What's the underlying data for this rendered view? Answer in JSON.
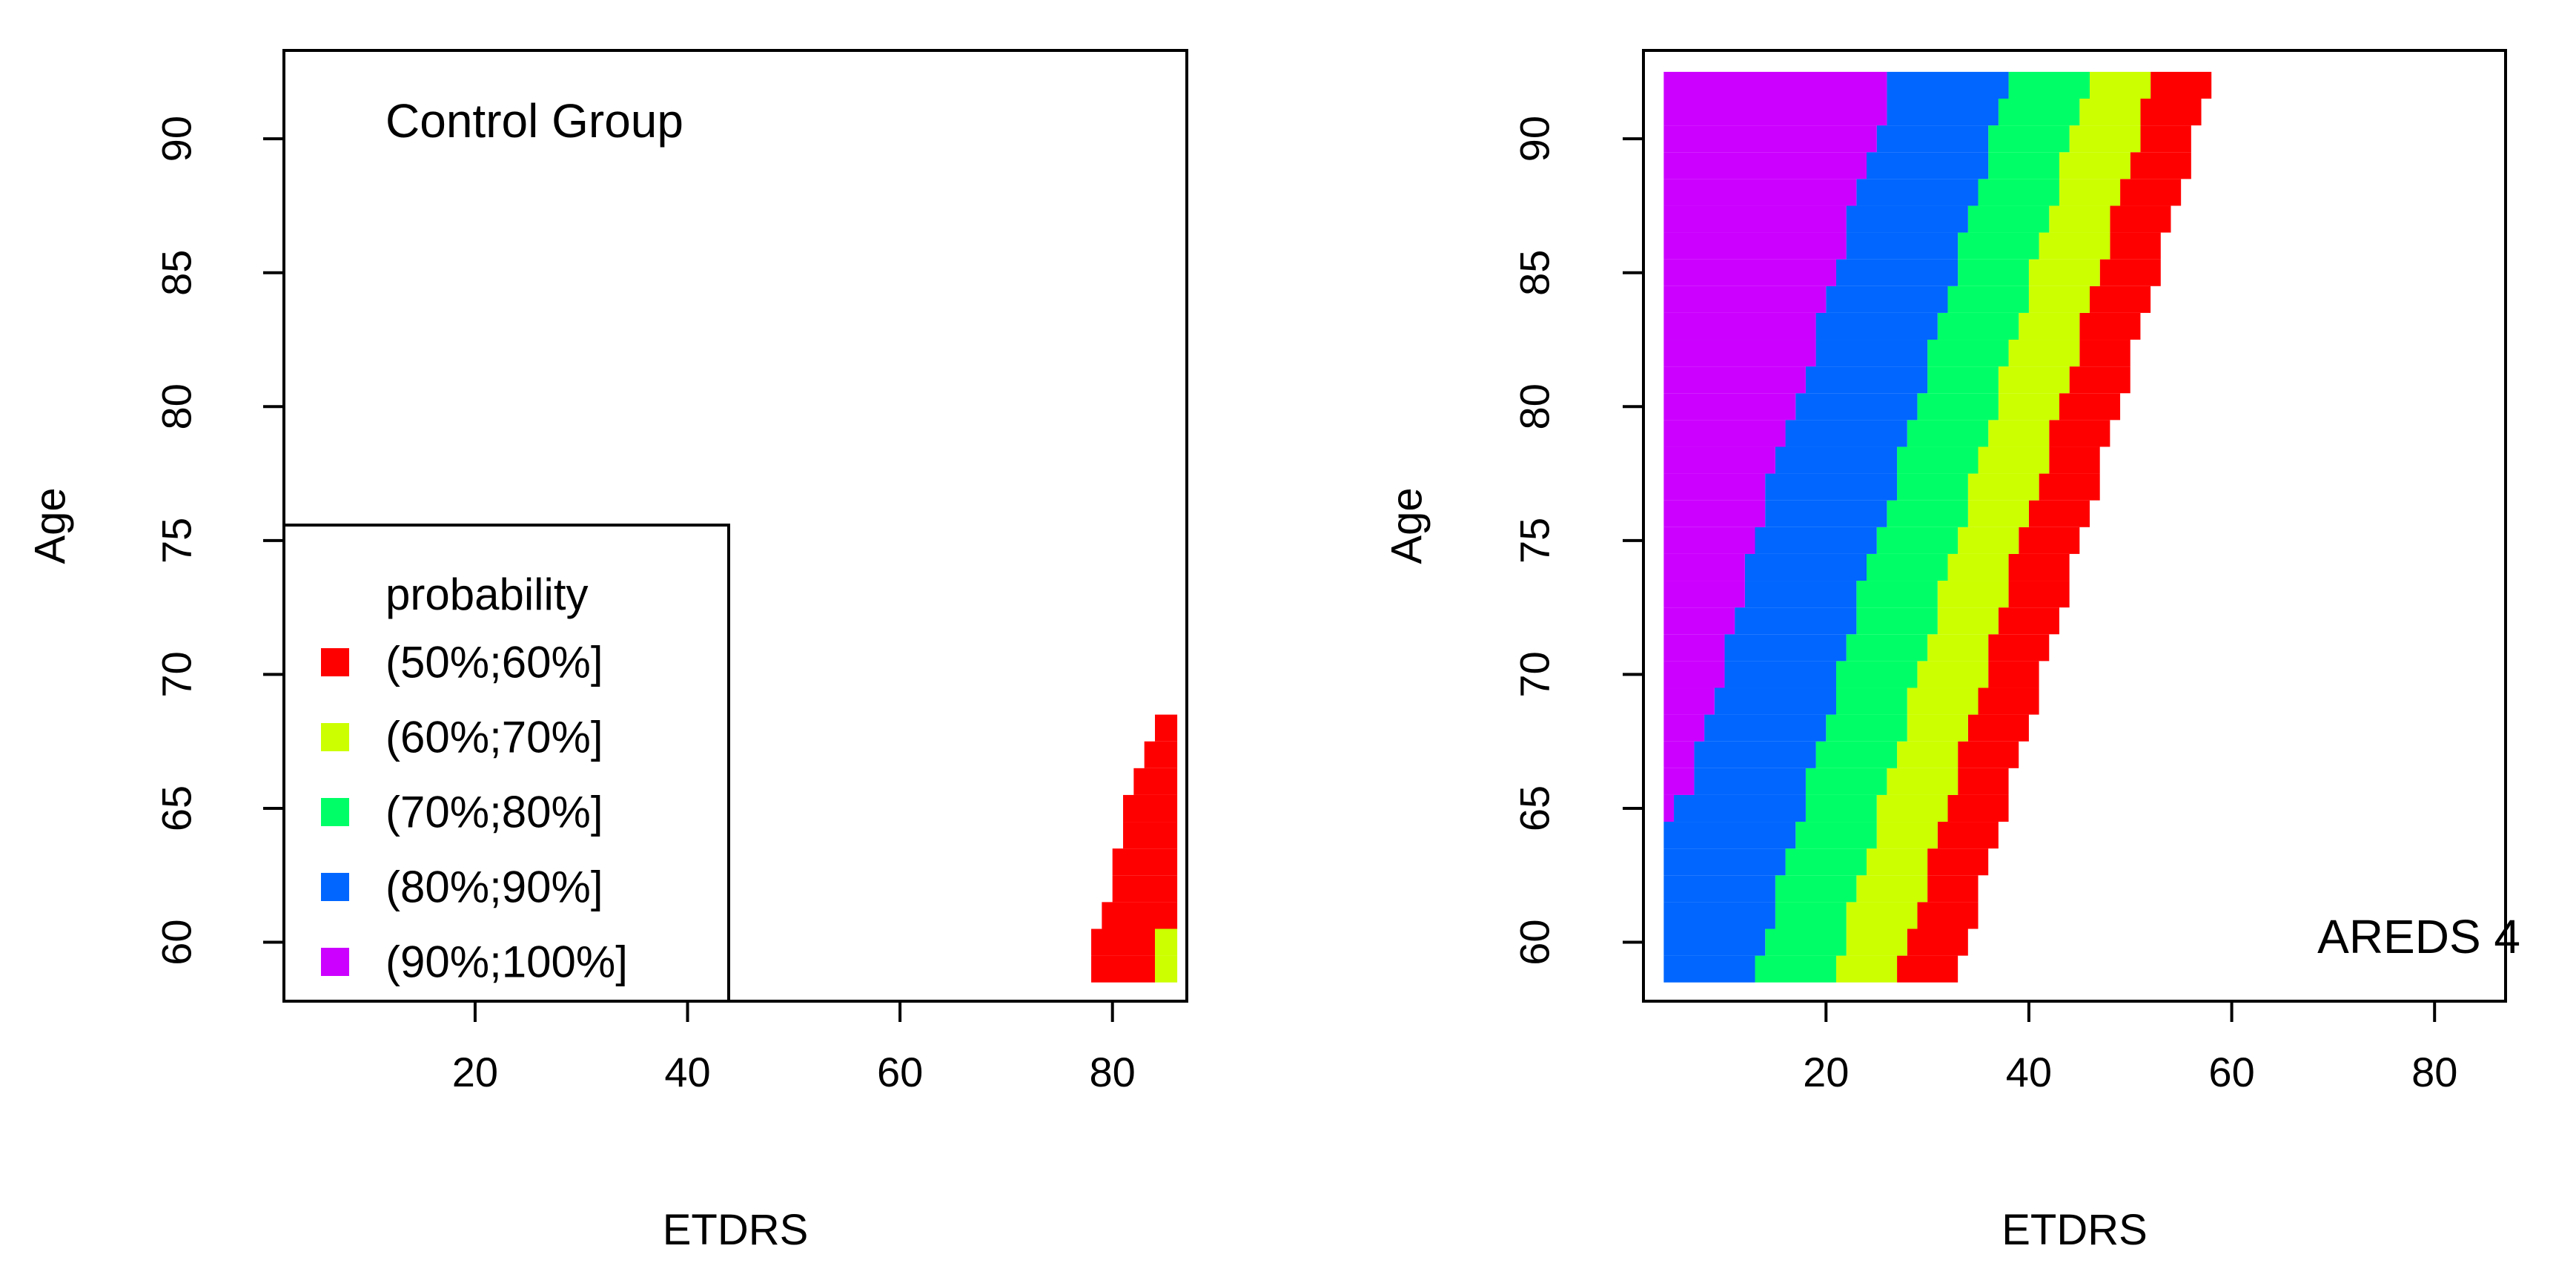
{
  "chart_data": [
    {
      "type": "heatmap",
      "panel_label": "Control Group",
      "xlabel": "ETDRS",
      "ylabel": "Age",
      "xlim": [
        2,
        87
      ],
      "ylim": [
        57.8,
        93.3
      ],
      "xticks": [
        20,
        40,
        60,
        80
      ],
      "yticks": [
        60,
        65,
        70,
        75,
        80,
        85,
        90
      ],
      "bins": [
        "(50%;60%]",
        "(60%;70%]",
        "(70%;80%]",
        "(80%;90%]",
        "(90%;100%]"
      ],
      "legend_title": "probability",
      "legend_position": "bottom-left",
      "rows": [
        {
          "age": 59,
          "bands": [
            78,
            84,
            86.1
          ]
        },
        {
          "age": 60,
          "bands": [
            78,
            84,
            86.1
          ]
        },
        {
          "age": 61,
          "bands": [
            79,
            86.1
          ]
        },
        {
          "age": 62,
          "bands": [
            80,
            86.1
          ]
        },
        {
          "age": 63,
          "bands": [
            80,
            86.1
          ]
        },
        {
          "age": 64,
          "bands": [
            81,
            86.1
          ]
        },
        {
          "age": 65,
          "bands": [
            81,
            86.1
          ]
        },
        {
          "age": 66,
          "bands": [
            82,
            86.1
          ]
        },
        {
          "age": 67,
          "bands": [
            83,
            86.1
          ]
        },
        {
          "age": 68,
          "bands": [
            84,
            86.1
          ]
        }
      ]
    },
    {
      "type": "heatmap",
      "panel_label": "AREDS 4",
      "xlabel": "ETDRS",
      "ylabel": "Age",
      "xlim": [
        2,
        87
      ],
      "ylim": [
        57.8,
        93.3
      ],
      "xticks": [
        20,
        40,
        60,
        80
      ],
      "yticks": [
        60,
        65,
        70,
        75,
        80,
        85,
        90
      ],
      "bins": [
        "(50%;60%]",
        "(60%;70%]",
        "(70%;80%]",
        "(80%;90%]",
        "(90%;100%]"
      ],
      "rows": [
        {
          "age": 59,
          "bands": [
            33,
            27,
            21,
            13,
            4
          ]
        },
        {
          "age": 60,
          "bands": [
            34,
            28,
            22,
            14,
            4
          ]
        },
        {
          "age": 61,
          "bands": [
            35,
            29,
            22,
            15,
            4
          ]
        },
        {
          "age": 62,
          "bands": [
            35,
            30,
            23,
            15,
            4
          ]
        },
        {
          "age": 63,
          "bands": [
            36,
            30,
            24,
            16,
            4
          ]
        },
        {
          "age": 64,
          "bands": [
            37,
            31,
            25,
            17,
            4
          ]
        },
        {
          "age": 65,
          "bands": [
            38,
            32,
            25,
            18,
            5,
            4
          ]
        },
        {
          "age": 66,
          "bands": [
            38,
            33,
            26,
            18,
            7,
            4
          ]
        },
        {
          "age": 67,
          "bands": [
            39,
            33,
            27,
            19,
            7,
            4
          ]
        },
        {
          "age": 68,
          "bands": [
            40,
            34,
            28,
            20,
            8,
            4
          ]
        },
        {
          "age": 69,
          "bands": [
            41,
            35,
            28,
            21,
            9,
            4
          ]
        },
        {
          "age": 70,
          "bands": [
            41,
            36,
            29,
            21,
            10,
            4
          ]
        },
        {
          "age": 71,
          "bands": [
            42,
            36,
            30,
            22,
            10,
            4
          ]
        },
        {
          "age": 72,
          "bands": [
            43,
            37,
            31,
            23,
            11,
            4
          ]
        },
        {
          "age": 73,
          "bands": [
            44,
            38,
            31,
            23,
            12,
            4
          ]
        },
        {
          "age": 74,
          "bands": [
            44,
            38,
            32,
            24,
            12,
            4
          ]
        },
        {
          "age": 75,
          "bands": [
            45,
            39,
            33,
            25,
            13,
            4
          ]
        },
        {
          "age": 76,
          "bands": [
            46,
            40,
            34,
            26,
            14,
            4
          ]
        },
        {
          "age": 77,
          "bands": [
            47,
            41,
            34,
            27,
            14,
            4
          ]
        },
        {
          "age": 78,
          "bands": [
            47,
            42,
            35,
            27,
            15,
            4
          ]
        },
        {
          "age": 79,
          "bands": [
            48,
            42,
            36,
            28,
            16,
            4
          ]
        },
        {
          "age": 80,
          "bands": [
            49,
            43,
            37,
            29,
            17,
            4
          ]
        },
        {
          "age": 81,
          "bands": [
            50,
            44,
            37,
            30,
            18,
            4
          ]
        },
        {
          "age": 82,
          "bands": [
            50,
            45,
            38,
            30,
            19,
            4
          ]
        },
        {
          "age": 83,
          "bands": [
            51,
            45,
            39,
            31,
            19,
            4
          ]
        },
        {
          "age": 84,
          "bands": [
            52,
            46,
            40,
            32,
            20,
            4
          ]
        },
        {
          "age": 85,
          "bands": [
            53,
            47,
            40,
            33,
            21,
            4
          ]
        },
        {
          "age": 86,
          "bands": [
            53,
            48,
            41,
            33,
            22,
            4
          ]
        },
        {
          "age": 87,
          "bands": [
            54,
            48,
            42,
            34,
            22,
            4
          ]
        },
        {
          "age": 88,
          "bands": [
            55,
            49,
            43,
            35,
            23,
            4
          ]
        },
        {
          "age": 89,
          "bands": [
            56,
            50,
            43,
            36,
            24,
            4
          ]
        },
        {
          "age": 90,
          "bands": [
            56,
            51,
            44,
            36,
            25,
            4
          ]
        },
        {
          "age": 91,
          "bands": [
            57,
            51,
            45,
            37,
            26,
            4
          ]
        },
        {
          "age": 92,
          "bands": [
            58,
            52,
            46,
            38,
            26,
            4
          ]
        }
      ]
    }
  ],
  "colors": {
    "(50%;60%]": "#ff0000",
    "(60%;70%]": "#ccff00",
    "(70%;80%]": "#00ff66",
    "(80%;90%]": "#0066ff",
    "(90%;100%]": "#cc00ff"
  }
}
